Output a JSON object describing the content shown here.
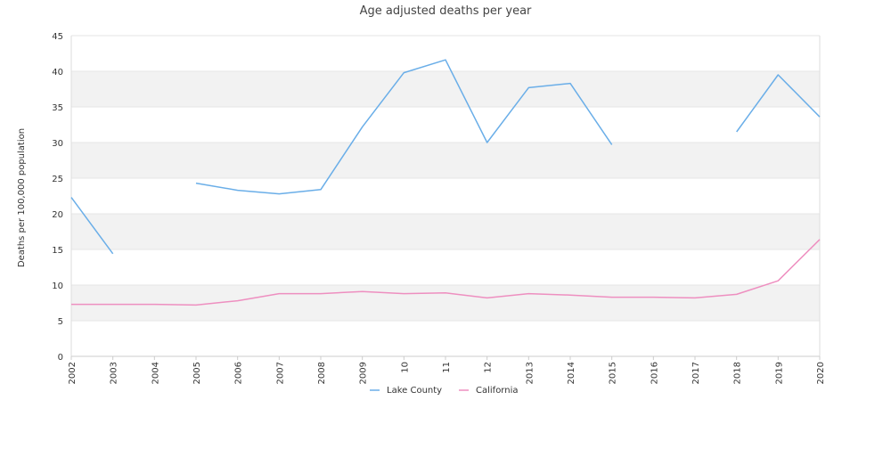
{
  "chart_data": {
    "type": "line",
    "title": "Age adjusted deaths per year",
    "ylabel": "Deaths per 100,000 population",
    "xlabel": "",
    "ylim": [
      0,
      45
    ],
    "y_ticks": [
      0,
      5,
      10,
      15,
      20,
      25,
      30,
      35,
      40,
      45
    ],
    "x": [
      2002,
      2003,
      2004,
      2005,
      2006,
      2007,
      2008,
      2009,
      2010,
      2011,
      2012,
      2013,
      2014,
      2015,
      2016,
      2017,
      2018,
      2019,
      2020
    ],
    "x_tick_labels": [
      "2002",
      "2003",
      "2004",
      "2005",
      "2006",
      "2007",
      "2008",
      "2009",
      "10",
      "11",
      "12",
      "2013",
      "2014",
      "2015",
      "2016",
      "2017",
      "2018",
      "2019",
      "2020"
    ],
    "grid": "horizontal alternating bands",
    "legend_position": "bottom",
    "series": [
      {
        "name": "Lake County",
        "color": "#6aaee8",
        "values": [
          22.3,
          14.4,
          null,
          24.3,
          23.3,
          22.8,
          23.4,
          32.2,
          39.8,
          41.6,
          30.0,
          37.7,
          38.3,
          29.7,
          null,
          null,
          31.5,
          39.5,
          33.6
        ]
      },
      {
        "name": "California",
        "color": "#ee8fc0",
        "values": [
          7.3,
          7.3,
          7.3,
          7.2,
          7.8,
          8.8,
          8.8,
          9.1,
          8.8,
          8.9,
          8.2,
          8.8,
          8.6,
          8.3,
          8.3,
          8.2,
          8.7,
          10.6,
          16.4
        ]
      }
    ]
  }
}
